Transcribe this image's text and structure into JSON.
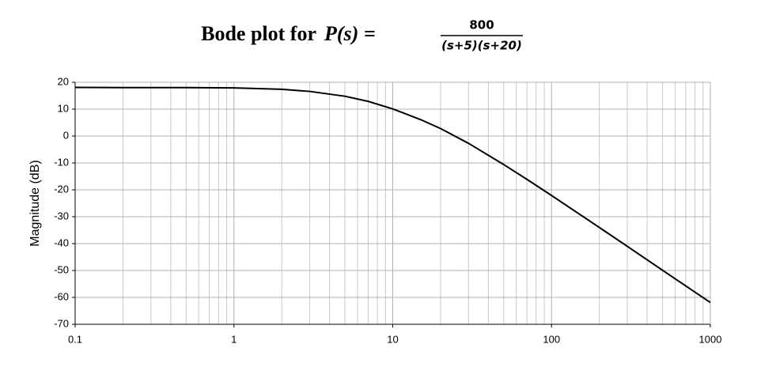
{
  "chart_data": {
    "type": "line",
    "title": "Bode plot for",
    "formula": {
      "lhs": "P(s) =",
      "numerator": "800",
      "denominator": "(s+5)(s+20)"
    },
    "y_label": "Magnitude (dB)",
    "x": [
      0.1,
      0.2,
      0.5,
      1,
      2,
      3,
      5,
      7,
      10,
      15,
      20,
      30,
      50,
      70,
      100,
      200,
      300,
      500,
      1000
    ],
    "series": [
      {
        "name": "Magnitude",
        "color": "#000000",
        "values": [
          18.1,
          18.0,
          18.0,
          17.9,
          17.4,
          16.6,
          14.8,
          12.9,
          10.1,
          6.1,
          2.8,
          -2.7,
          -10.6,
          -16.1,
          -22.1,
          -34.0,
          -41.0,
          -49.9,
          -61.9
        ]
      }
    ],
    "x_log": true,
    "xlim": [
      0.1,
      1000
    ],
    "xticks": [
      0.1,
      1,
      10,
      100,
      1000
    ],
    "ylim": [
      -70,
      20
    ],
    "yticks": [
      -70,
      -60,
      -50,
      -40,
      -30,
      -20,
      -10,
      0,
      10,
      20
    ],
    "grid": true,
    "minor_grid": true
  }
}
